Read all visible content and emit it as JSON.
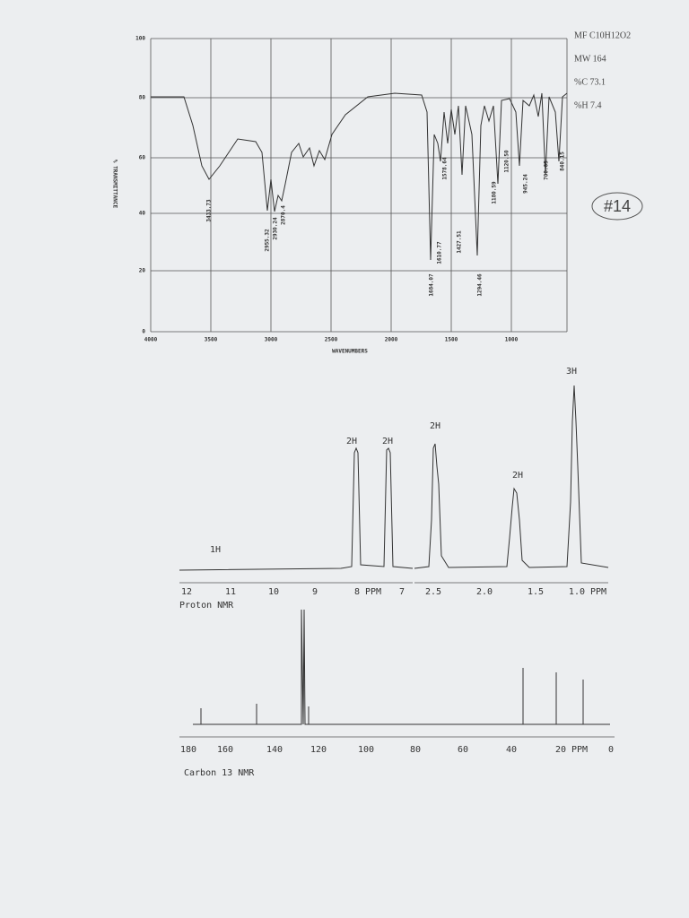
{
  "ir_spectrum": {
    "y_axis_title": "% TRANSMITTANCE",
    "y_ticks": [
      "100",
      "80",
      "60",
      "40",
      "20",
      "0"
    ],
    "x_ticks": [
      "4000",
      "3500",
      "3000",
      "2500",
      "2000",
      "1500",
      "1000"
    ],
    "x_axis_title": "WAVENUMBERS",
    "peak_labels": [
      "3433.73",
      "2955.32",
      "2930.24",
      "2870.4",
      "1684.07",
      "1610.77",
      "1578.64",
      "1427.51",
      "1294.46",
      "1180.59",
      "1120.50",
      "945.24",
      "700.05",
      "840.15"
    ]
  },
  "compound_info": {
    "formula": "MF C10H12O2",
    "mw": "MW 164",
    "carbon": "%C 73.1",
    "hydrogen": "%H 7.4",
    "sample_number": "#14"
  },
  "proton_nmr": {
    "integrations": [
      "1H",
      "2H",
      "2H",
      "2H",
      "2H",
      "3H"
    ],
    "left_axis_labels": [
      "12",
      "11",
      "10",
      "9",
      "8 PPM",
      "7"
    ],
    "right_axis_labels": [
      "2.5",
      "2.0",
      "1.5",
      "1.0 PPM"
    ],
    "caption": "Proton NMR"
  },
  "carbon_nmr": {
    "axis_labels": [
      "180",
      "160",
      "140",
      "120",
      "100",
      "80",
      "60",
      "40",
      "20 PPM",
      "0"
    ],
    "caption": "Carbon 13 NMR"
  }
}
